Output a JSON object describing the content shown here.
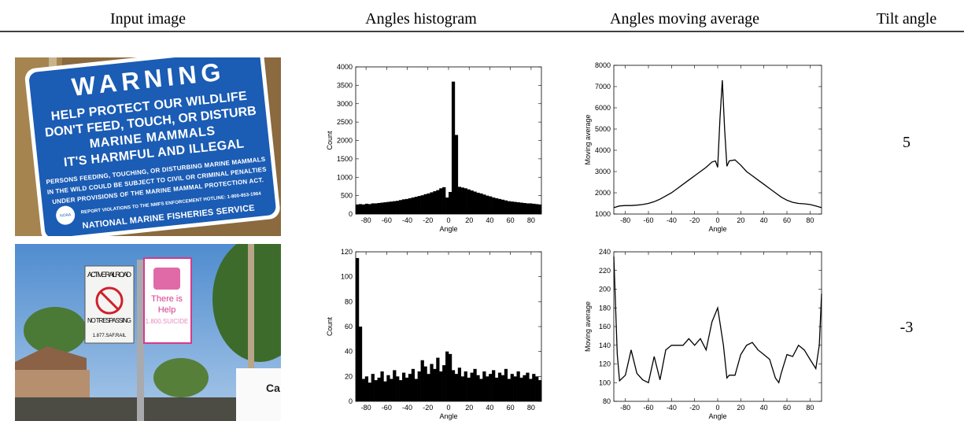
{
  "header": [
    "Input image",
    "Angles histogram",
    "Angles moving average",
    "Tilt angle"
  ],
  "rows": [
    {
      "image_text": [
        "WARNING",
        "HELP PROTECT OUR WILDLIFE",
        "DON'T FEED, TOUCH, OR DISTURB",
        "MARINE MAMMALS",
        "IT'S HARMFUL AND ILLEGAL",
        "PERSONS FEEDING, TOUCHING, OR DISTURBING MARINE MAMMALS",
        "IN THE WILD COULD BE SUBJECT TO CIVIL OR CRIMINAL PENALTIES",
        "UNDER PROVISIONS OF THE MARINE MAMMAL PROTECTION ACT.",
        "REPORT VIOLATIONS TO THE NMFS ENFORCEMENT HOTLINE: 1-800-853-1964",
        "NATIONAL MARINE FISHERIES SERVICE",
        "NOAA"
      ],
      "histogram": {
        "type": "histogram",
        "xlabel": "Angle",
        "ylabel": "Count",
        "color": "#000000",
        "bins": [
          -90,
          -87,
          -84,
          -81,
          -78,
          -75,
          -72,
          -69,
          -66,
          -63,
          -60,
          -57,
          -54,
          -51,
          -48,
          -45,
          -42,
          -39,
          -36,
          -33,
          -30,
          -27,
          -24,
          -21,
          -18,
          -15,
          -12,
          -9,
          -6,
          -3,
          0,
          3,
          6,
          9,
          12,
          15,
          18,
          21,
          24,
          27,
          30,
          33,
          36,
          39,
          42,
          45,
          48,
          51,
          54,
          57,
          60,
          63,
          66,
          69,
          72,
          75,
          78,
          81,
          84,
          87,
          90
        ],
        "values": [
          260,
          270,
          260,
          280,
          270,
          290,
          290,
          300,
          310,
          320,
          330,
          340,
          350,
          360,
          380,
          400,
          410,
          430,
          450,
          470,
          490,
          510,
          540,
          560,
          590,
          620,
          650,
          700,
          730,
          450,
          600,
          3600,
          2150,
          740,
          720,
          700,
          670,
          640,
          610,
          580,
          560,
          530,
          500,
          480,
          450,
          430,
          410,
          390,
          370,
          350,
          340,
          330,
          320,
          310,
          300,
          290,
          290,
          280,
          270,
          260
        ],
        "xlim": [
          -90,
          90
        ],
        "xticks": [
          -80,
          -60,
          -40,
          -20,
          0,
          20,
          40,
          60,
          80
        ],
        "ylim": [
          0,
          4000
        ],
        "yticks": [
          0,
          500,
          1000,
          1500,
          2000,
          2500,
          3000,
          3500,
          4000
        ]
      },
      "moving_average": {
        "type": "line",
        "xlabel": "Angle",
        "ylabel": "Moving average",
        "color": "#000000",
        "x": [
          -90,
          -85,
          -80,
          -75,
          -70,
          -65,
          -60,
          -55,
          -50,
          -45,
          -40,
          -35,
          -30,
          -25,
          -20,
          -15,
          -10,
          -5,
          -2,
          0,
          2,
          4,
          6,
          8,
          10,
          15,
          20,
          25,
          30,
          35,
          40,
          45,
          50,
          55,
          60,
          65,
          70,
          75,
          80,
          85,
          90
        ],
        "values": [
          1300,
          1380,
          1400,
          1400,
          1420,
          1450,
          1500,
          1580,
          1700,
          1850,
          2000,
          2200,
          2400,
          2600,
          2800,
          3000,
          3200,
          3450,
          3500,
          3200,
          5500,
          7300,
          5000,
          3250,
          3500,
          3550,
          3300,
          3000,
          2800,
          2600,
          2400,
          2200,
          2000,
          1800,
          1650,
          1550,
          1500,
          1480,
          1450,
          1380,
          1300
        ],
        "xlim": [
          -90,
          90
        ],
        "xticks": [
          -80,
          -60,
          -40,
          -20,
          0,
          20,
          40,
          60,
          80
        ],
        "ylim": [
          1000,
          8000
        ],
        "yticks": [
          1000,
          2000,
          3000,
          4000,
          5000,
          6000,
          7000,
          8000
        ]
      },
      "tilt_angle": 5
    },
    {
      "image_text": [
        "ACTIVE RAILROAD",
        "NO TRESPASSING",
        "1.877.SAF.RAIL",
        "There is",
        "Help",
        "1.800.SUICIDE",
        "Ca"
      ],
      "histogram": {
        "type": "histogram",
        "xlabel": "Angle",
        "ylabel": "Count",
        "color": "#000000",
        "bins": [
          -90,
          -87,
          -84,
          -81,
          -78,
          -75,
          -72,
          -69,
          -66,
          -63,
          -60,
          -57,
          -54,
          -51,
          -48,
          -45,
          -42,
          -39,
          -36,
          -33,
          -30,
          -27,
          -24,
          -21,
          -18,
          -15,
          -12,
          -9,
          -6,
          -3,
          0,
          3,
          6,
          9,
          12,
          15,
          18,
          21,
          24,
          27,
          30,
          33,
          36,
          39,
          42,
          45,
          48,
          51,
          54,
          57,
          60,
          63,
          66,
          69,
          72,
          75,
          78,
          81,
          84,
          87,
          90
        ],
        "values": [
          115,
          60,
          18,
          20,
          15,
          22,
          17,
          19,
          24,
          16,
          21,
          18,
          25,
          20,
          17,
          23,
          19,
          22,
          26,
          18,
          24,
          33,
          28,
          22,
          30,
          26,
          35,
          24,
          29,
          40,
          38,
          25,
          22,
          27,
          20,
          24,
          19,
          23,
          26,
          21,
          18,
          24,
          20,
          22,
          25,
          19,
          23,
          21,
          26,
          18,
          22,
          20,
          24,
          19,
          21,
          23,
          18,
          22,
          20,
          17
        ],
        "xlim": [
          -90,
          90
        ],
        "xticks": [
          -80,
          -60,
          -40,
          -20,
          0,
          20,
          40,
          60,
          80
        ],
        "ylim": [
          0,
          120
        ],
        "yticks": [
          0,
          20,
          40,
          60,
          80,
          100,
          120
        ]
      },
      "moving_average": {
        "type": "line",
        "xlabel": "Angle",
        "ylabel": "Moving average",
        "color": "#000000",
        "x": [
          -90,
          -87,
          -85,
          -80,
          -75,
          -70,
          -65,
          -60,
          -55,
          -50,
          -45,
          -40,
          -35,
          -30,
          -25,
          -20,
          -15,
          -10,
          -5,
          0,
          5,
          8,
          10,
          15,
          20,
          25,
          30,
          35,
          40,
          45,
          50,
          53,
          55,
          60,
          65,
          70,
          75,
          80,
          85,
          88,
          90
        ],
        "values": [
          235,
          130,
          102,
          108,
          135,
          110,
          103,
          100,
          128,
          103,
          135,
          140,
          140,
          140,
          147,
          140,
          147,
          135,
          165,
          180,
          140,
          105,
          108,
          108,
          130,
          140,
          143,
          135,
          130,
          125,
          105,
          100,
          110,
          130,
          128,
          140,
          135,
          125,
          115,
          140,
          195
        ],
        "xlim": [
          -90,
          90
        ],
        "xticks": [
          -80,
          -60,
          -40,
          -20,
          0,
          20,
          40,
          60,
          80
        ],
        "ylim": [
          80,
          240
        ],
        "yticks": [
          80,
          100,
          120,
          140,
          160,
          180,
          200,
          220,
          240
        ]
      },
      "tilt_angle": -3
    }
  ]
}
